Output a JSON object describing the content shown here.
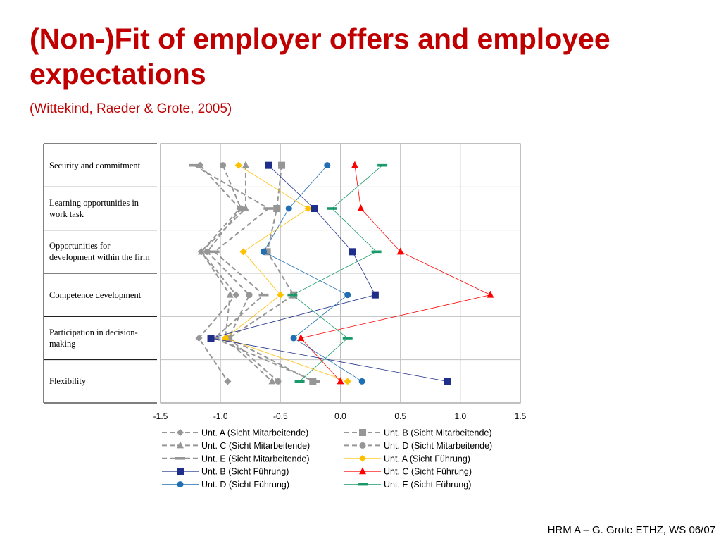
{
  "slide": {
    "title": "(Non-)Fit of employer offers and employee expectations",
    "subtitle": "(Wittekind, Raeder & Grote, 2005)",
    "footer": "HRM A – G. Grote ETHZ, WS 06/07"
  },
  "chart_data": {
    "type": "line",
    "title": "",
    "xlabel": "",
    "ylabel": "",
    "xlim": [
      -1.5,
      1.5
    ],
    "x_ticks": [
      "-1.5",
      "-1.0",
      "-0.5",
      "0.0",
      "0.5",
      "1.0",
      "1.5"
    ],
    "categories": [
      "Security and commitment",
      "Learning opportunities in work task",
      "Opportunities for development within the firm",
      "Competence development",
      "Participation in decision-making",
      "Flexibility"
    ],
    "grid": true,
    "legend_position": "bottom",
    "series": [
      {
        "name": "Unt. A (Sicht Mitarbeitende)",
        "marker": "diamond",
        "color": "#969696",
        "dash": true,
        "values": [
          -1.17,
          -0.84,
          -1.16,
          -0.87,
          -1.18,
          -0.94
        ]
      },
      {
        "name": "Unt. B (Sicht Mitarbeitende)",
        "marker": "square",
        "color": "#969696",
        "dash": true,
        "values": [
          -0.49,
          -0.53,
          -0.61,
          -0.39,
          -0.93,
          -0.23
        ]
      },
      {
        "name": "Unt. C (Sicht Mitarbeitende)",
        "marker": "triangle",
        "color": "#969696",
        "dash": true,
        "values": [
          -0.79,
          -0.79,
          -1.16,
          -0.92,
          -0.96,
          -0.57
        ]
      },
      {
        "name": "Unt. D (Sicht Mitarbeitende)",
        "marker": "circle",
        "color": "#969696",
        "dash": true,
        "values": [
          -0.98,
          -0.83,
          -1.11,
          -0.76,
          -0.93,
          -0.52
        ]
      },
      {
        "name": "Unt. E (Sicht Mitarbeitende)",
        "marker": "dash",
        "color": "#969696",
        "dash": true,
        "values": [
          -1.22,
          -0.6,
          -1.05,
          -0.64,
          -1.05,
          -0.21
        ]
      },
      {
        "name": "Unt. A (Sicht Führung)",
        "marker": "diamond",
        "color": "#ffc000",
        "dash": false,
        "values": [
          -0.85,
          -0.27,
          -0.81,
          -0.5,
          -0.96,
          0.06
        ]
      },
      {
        "name": "Unt. B (Sicht Führung)",
        "marker": "square",
        "color": "#1f2e8a",
        "dash": false,
        "values": [
          -0.6,
          -0.22,
          0.1,
          0.29,
          -1.08,
          0.89
        ]
      },
      {
        "name": "Unt. C (Sicht Führung)",
        "marker": "triangle",
        "color": "#ff0000",
        "dash": false,
        "values": [
          0.12,
          0.17,
          0.5,
          1.25,
          -0.33,
          0.0
        ]
      },
      {
        "name": "Unt. D (Sicht Führung)",
        "marker": "circle",
        "color": "#1f6fb2",
        "dash": false,
        "values": [
          -0.11,
          -0.43,
          -0.64,
          0.06,
          -0.39,
          0.18
        ]
      },
      {
        "name": "Unt. E (Sicht Führung)",
        "marker": "dash",
        "color": "#1a9a6a",
        "dash": false,
        "values": [
          0.35,
          -0.07,
          0.3,
          -0.4,
          0.06,
          -0.34
        ]
      }
    ]
  }
}
